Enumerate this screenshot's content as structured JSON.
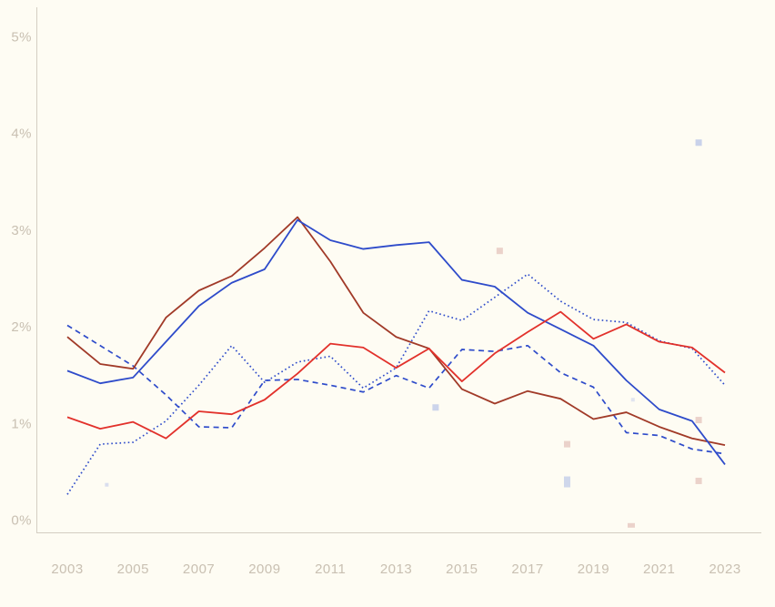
{
  "page": {
    "background_color": "#fefcf3"
  },
  "axes": {
    "label_color": "#c9c0b2",
    "axis_line_color": "#d4cec2",
    "y_tick_labels": [
      "5%",
      "4%",
      "3%",
      "2%",
      "1%",
      "0%"
    ],
    "y_tick_values": [
      5,
      4,
      3,
      2,
      1,
      0
    ],
    "x_tick_labels": [
      "2003",
      "2005",
      "2007",
      "2009",
      "2011",
      "2013",
      "2015",
      "2017",
      "2019",
      "2021",
      "2023"
    ],
    "x_tick_values": [
      2003,
      2005,
      2007,
      2009,
      2011,
      2013,
      2015,
      2017,
      2019,
      2021,
      2023
    ]
  },
  "chart_data": {
    "type": "line",
    "title": "",
    "xlabel": "",
    "ylabel": "",
    "grid": false,
    "legend_position": "none",
    "xlim": [
      2003,
      2023
    ],
    "ylim": [
      0,
      5
    ],
    "x": [
      2003,
      2004,
      2005,
      2006,
      2007,
      2008,
      2009,
      2010,
      2011,
      2012,
      2013,
      2014,
      2015,
      2016,
      2017,
      2018,
      2019,
      2020,
      2021,
      2022,
      2023
    ],
    "series": [
      {
        "name": "blue-dotted",
        "color": "#2e4bca",
        "line_style": "dotted",
        "dash": "1.6,3",
        "width": 1.7,
        "values": [
          0.27,
          0.79,
          0.81,
          1.03,
          1.4,
          1.81,
          1.43,
          1.64,
          1.7,
          1.37,
          1.58,
          2.17,
          2.07,
          2.31,
          2.55,
          2.27,
          2.08,
          2.05,
          1.86,
          1.78,
          1.4
        ]
      },
      {
        "name": "blue-dashed",
        "color": "#2e4bca",
        "line_style": "dashed",
        "dash": "6,4.5",
        "width": 1.7,
        "values": [
          2.02,
          1.81,
          1.6,
          1.3,
          0.97,
          0.96,
          1.45,
          1.46,
          1.4,
          1.33,
          1.5,
          1.37,
          1.77,
          1.75,
          1.81,
          1.53,
          1.38,
          0.91,
          0.88,
          0.74,
          0.69
        ]
      },
      {
        "name": "dark-red-solid",
        "color": "#a13a28",
        "line_style": "solid",
        "dash": "",
        "width": 1.8,
        "values": [
          1.9,
          1.62,
          1.57,
          2.1,
          2.38,
          2.53,
          2.82,
          3.14,
          2.68,
          2.15,
          1.9,
          1.78,
          1.36,
          1.21,
          1.34,
          1.26,
          1.05,
          1.12,
          0.97,
          0.85,
          0.78
        ]
      },
      {
        "name": "blue-solid",
        "color": "#2e4bca",
        "line_style": "solid",
        "dash": "",
        "width": 1.8,
        "values": [
          1.55,
          1.42,
          1.48,
          1.85,
          2.22,
          2.46,
          2.6,
          3.11,
          2.9,
          2.81,
          2.85,
          2.88,
          2.49,
          2.42,
          2.15,
          1.98,
          1.81,
          1.45,
          1.15,
          1.03,
          0.58
        ]
      },
      {
        "name": "red-solid",
        "color": "#e2312b",
        "line_style": "solid",
        "dash": "",
        "width": 1.8,
        "values": [
          1.07,
          0.95,
          1.02,
          0.85,
          1.13,
          1.1,
          1.25,
          1.52,
          1.83,
          1.79,
          1.58,
          1.78,
          1.44,
          1.73,
          1.95,
          2.16,
          1.88,
          2.03,
          1.85,
          1.79,
          1.53
        ]
      }
    ],
    "scatter_markers": [
      {
        "x": 2004.2,
        "value": 0.37,
        "color": "#ccd4ec",
        "w": 4,
        "h": 4,
        "opacity": 0.75
      },
      {
        "x": 2014.2,
        "value": 1.17,
        "color": "#c3cde9",
        "w": 7,
        "h": 7,
        "opacity": 0.85
      },
      {
        "x": 2016.15,
        "value": 2.79,
        "color": "#e9cdc5",
        "w": 7,
        "h": 7,
        "opacity": 0.9
      },
      {
        "x": 2018.2,
        "value": 0.79,
        "color": "#e9cdc5",
        "w": 7,
        "h": 7,
        "opacity": 0.9
      },
      {
        "x": 2018.2,
        "value": 0.4,
        "color": "#c3cde9",
        "w": 7,
        "h": 12,
        "opacity": 0.8
      },
      {
        "x": 2020.2,
        "value": 1.25,
        "color": "#ccd4ec",
        "w": 4,
        "h": 4,
        "opacity": 0.6
      },
      {
        "x": 2020.15,
        "value": -0.05,
        "color": "#e9cdc5",
        "w": 8,
        "h": 5,
        "opacity": 0.9
      },
      {
        "x": 2022.2,
        "value": 3.91,
        "color": "#c3cde9",
        "w": 7,
        "h": 7,
        "opacity": 0.9
      },
      {
        "x": 2022.2,
        "value": 1.04,
        "color": "#e9cdc5",
        "w": 7,
        "h": 7,
        "opacity": 0.9
      },
      {
        "x": 2022.2,
        "value": 0.41,
        "color": "#e9cdc5",
        "w": 7,
        "h": 7,
        "opacity": 0.9
      }
    ]
  }
}
